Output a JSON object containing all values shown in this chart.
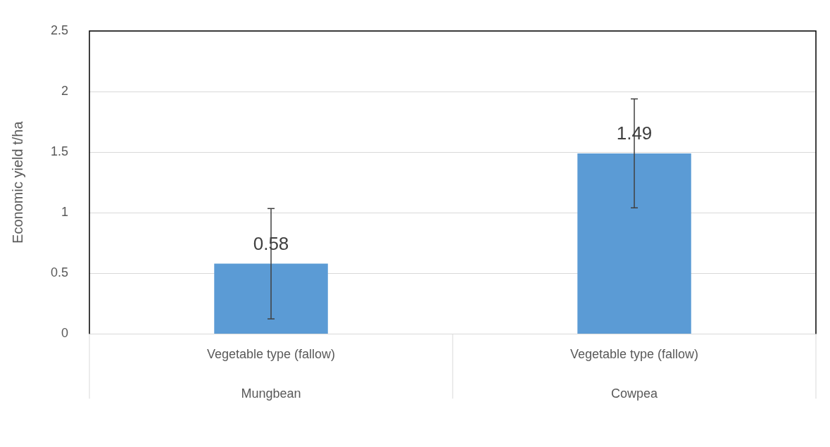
{
  "chart_data": {
    "type": "bar",
    "ylabel": "Economic yield t/ha",
    "categories": [
      "Vegetable type (fallow)\nMungbean",
      "Vegetable type (fallow)\nCowpea"
    ],
    "values": [
      0.58,
      1.49
    ],
    "color": "#5b9bd5",
    "errors": [
      0.455,
      0.45
    ],
    "ylim": [
      0,
      2.5
    ],
    "yticks": [
      0,
      0.5,
      1,
      1.5,
      2,
      2.5
    ],
    "grid": "y",
    "data_labels": true
  }
}
